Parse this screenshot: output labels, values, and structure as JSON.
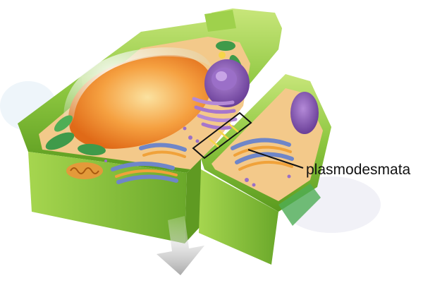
{
  "labels": {
    "plasmodesmata": "plasmodesmata"
  },
  "colors": {
    "cell_wall": "#8cc63f",
    "cell_wall_dark": "#5a9a1e",
    "cell_wall_light": "#c8e67a",
    "cytoplasm": "#f3c98a",
    "vacuole": "#f08a2a",
    "nucleus": "#8a5bb5",
    "chloroplast": "#3f9a4a",
    "golgi": "#6f86c8",
    "mitochondrion": "#e39a3a",
    "arrow": "#bfbfbf",
    "callout_line": "#111111"
  },
  "icons": [
    "down-arrow-icon"
  ]
}
